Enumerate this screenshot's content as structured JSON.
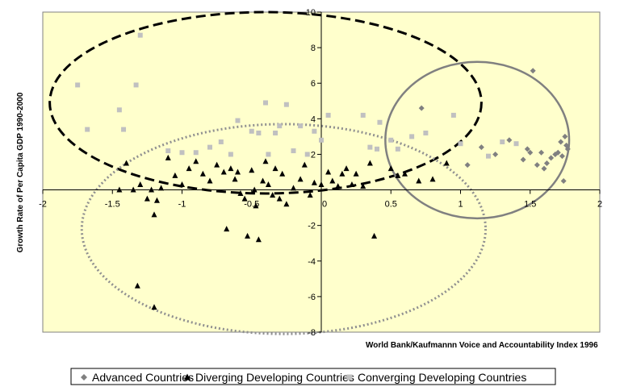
{
  "chart_data": {
    "type": "scatter",
    "title": "",
    "xlabel": "World Bank/Kaufmannn Voice and Accountability Index 1996",
    "ylabel": "Growth Rate of Per Capita GDP 1990-2000",
    "xlim": [
      -2,
      2
    ],
    "ylim": [
      -8,
      10
    ],
    "x_ticks": [
      -2,
      -1.5,
      -1,
      -0.5,
      0,
      0.5,
      1,
      1.5,
      2
    ],
    "y_ticks": [
      -8,
      -6,
      -4,
      -2,
      0,
      2,
      4,
      6,
      8,
      10
    ],
    "x_tick_labels": [
      "-2",
      "-1.5",
      "-1",
      "-0.5",
      "0",
      "0.5",
      "1",
      "1.5",
      "2"
    ],
    "y_tick_labels": [
      "-8",
      "-6",
      "-4",
      "-2",
      "0",
      "2",
      "4",
      "6",
      "8",
      "10"
    ],
    "grid": false,
    "legend_position": "bottom",
    "background": "#ffffcc",
    "series": [
      {
        "name": "Advanced Countries",
        "marker": "diamond",
        "color": "#808080",
        "points": [
          [
            0.72,
            4.6
          ],
          [
            1.05,
            1.4
          ],
          [
            1.15,
            2.4
          ],
          [
            1.25,
            2.0
          ],
          [
            1.35,
            2.8
          ],
          [
            1.45,
            1.7
          ],
          [
            1.5,
            2.1
          ],
          [
            1.52,
            6.7
          ],
          [
            1.55,
            1.4
          ],
          [
            1.58,
            2.1
          ],
          [
            1.6,
            1.2
          ],
          [
            1.65,
            1.8
          ],
          [
            1.68,
            2.0
          ],
          [
            1.7,
            2.1
          ],
          [
            1.72,
            2.7
          ],
          [
            1.73,
            1.9
          ],
          [
            1.75,
            3.0
          ],
          [
            1.76,
            2.5
          ],
          [
            1.77,
            2.3
          ],
          [
            1.74,
            0.5
          ],
          [
            1.62,
            1.5
          ],
          [
            1.48,
            2.3
          ]
        ]
      },
      {
        "name": "Diverging Developing Countries",
        "marker": "triangle",
        "color": "#000000",
        "points": [
          [
            -1.45,
            0.0
          ],
          [
            -1.4,
            1.5
          ],
          [
            -1.35,
            0.0
          ],
          [
            -1.32,
            -5.4
          ],
          [
            -1.3,
            0.3
          ],
          [
            -1.25,
            -0.5
          ],
          [
            -1.22,
            0.0
          ],
          [
            -1.2,
            -1.4
          ],
          [
            -1.2,
            -6.6
          ],
          [
            -1.18,
            -0.6
          ],
          [
            -1.15,
            0.1
          ],
          [
            -1.1,
            1.8
          ],
          [
            -1.05,
            0.8
          ],
          [
            -1.0,
            0.3
          ],
          [
            -0.95,
            1.2
          ],
          [
            -0.9,
            1.6
          ],
          [
            -0.85,
            0.9
          ],
          [
            -0.8,
            0.5
          ],
          [
            -0.75,
            1.4
          ],
          [
            -0.7,
            1.0
          ],
          [
            -0.68,
            -2.2
          ],
          [
            -0.65,
            1.2
          ],
          [
            -0.62,
            0.6
          ],
          [
            -0.6,
            1.0
          ],
          [
            -0.58,
            -0.2
          ],
          [
            -0.55,
            -0.5
          ],
          [
            -0.53,
            -2.6
          ],
          [
            -0.5,
            1.1
          ],
          [
            -0.48,
            0.0
          ],
          [
            -0.47,
            -0.9
          ],
          [
            -0.45,
            -2.8
          ],
          [
            -0.42,
            0.5
          ],
          [
            -0.4,
            1.6
          ],
          [
            -0.38,
            0.3
          ],
          [
            -0.35,
            -0.3
          ],
          [
            -0.33,
            1.2
          ],
          [
            -0.3,
            -0.5
          ],
          [
            -0.28,
            0.9
          ],
          [
            -0.25,
            -0.8
          ],
          [
            -0.2,
            0.1
          ],
          [
            -0.15,
            0.6
          ],
          [
            -0.12,
            1.4
          ],
          [
            -0.08,
            -0.3
          ],
          [
            -0.05,
            0.4
          ],
          [
            0.0,
            0.3
          ],
          [
            0.05,
            1.0
          ],
          [
            0.08,
            0.5
          ],
          [
            0.12,
            0.2
          ],
          [
            0.15,
            0.9
          ],
          [
            0.18,
            1.2
          ],
          [
            0.22,
            0.3
          ],
          [
            0.25,
            0.9
          ],
          [
            0.3,
            0.2
          ],
          [
            0.35,
            1.5
          ],
          [
            0.38,
            -2.6
          ],
          [
            0.5,
            1.2
          ],
          [
            0.55,
            0.8
          ],
          [
            0.6,
            0.9
          ],
          [
            0.7,
            0.5
          ],
          [
            0.8,
            0.6
          ],
          [
            0.9,
            1.5
          ]
        ]
      },
      {
        "name": "Converging Developing Countries",
        "marker": "square",
        "color": "#c0c0c0",
        "points": [
          [
            -1.75,
            5.9
          ],
          [
            -1.68,
            3.4
          ],
          [
            -1.45,
            4.5
          ],
          [
            -1.42,
            3.4
          ],
          [
            -1.33,
            5.9
          ],
          [
            -1.3,
            8.7
          ],
          [
            -1.1,
            2.2
          ],
          [
            -1.0,
            2.1
          ],
          [
            -0.9,
            2.1
          ],
          [
            -0.8,
            2.4
          ],
          [
            -0.72,
            2.7
          ],
          [
            -0.65,
            2.0
          ],
          [
            -0.6,
            3.9
          ],
          [
            -0.5,
            3.3
          ],
          [
            -0.45,
            3.2
          ],
          [
            -0.4,
            4.9
          ],
          [
            -0.38,
            2.0
          ],
          [
            -0.33,
            3.2
          ],
          [
            -0.3,
            3.6
          ],
          [
            -0.25,
            4.8
          ],
          [
            -0.2,
            2.2
          ],
          [
            -0.15,
            3.6
          ],
          [
            -0.1,
            2.0
          ],
          [
            -0.05,
            3.3
          ],
          [
            0.0,
            2.8
          ],
          [
            0.05,
            4.2
          ],
          [
            0.35,
            2.4
          ],
          [
            0.4,
            2.3
          ],
          [
            0.42,
            3.8
          ],
          [
            0.5,
            2.8
          ],
          [
            0.55,
            2.3
          ],
          [
            0.65,
            3.0
          ],
          [
            0.75,
            3.2
          ],
          [
            0.95,
            4.2
          ],
          [
            1.0,
            2.6
          ],
          [
            1.2,
            1.9
          ],
          [
            1.4,
            2.6
          ],
          [
            1.3,
            2.7
          ],
          [
            0.3,
            4.2
          ]
        ]
      }
    ],
    "annotations": [
      {
        "shape": "ellipse",
        "style": "dashed-black",
        "cx": -0.4,
        "cy": 4.9,
        "rx": 1.55,
        "ry": 5.1
      },
      {
        "shape": "ellipse",
        "style": "dotted-gray",
        "cx": -0.27,
        "cy": -2.2,
        "rx": 1.45,
        "ry": 5.9
      },
      {
        "shape": "ellipse",
        "style": "solid-gray",
        "cx": 1.12,
        "cy": 2.8,
        "rx": 0.66,
        "ry": 4.4
      }
    ]
  }
}
